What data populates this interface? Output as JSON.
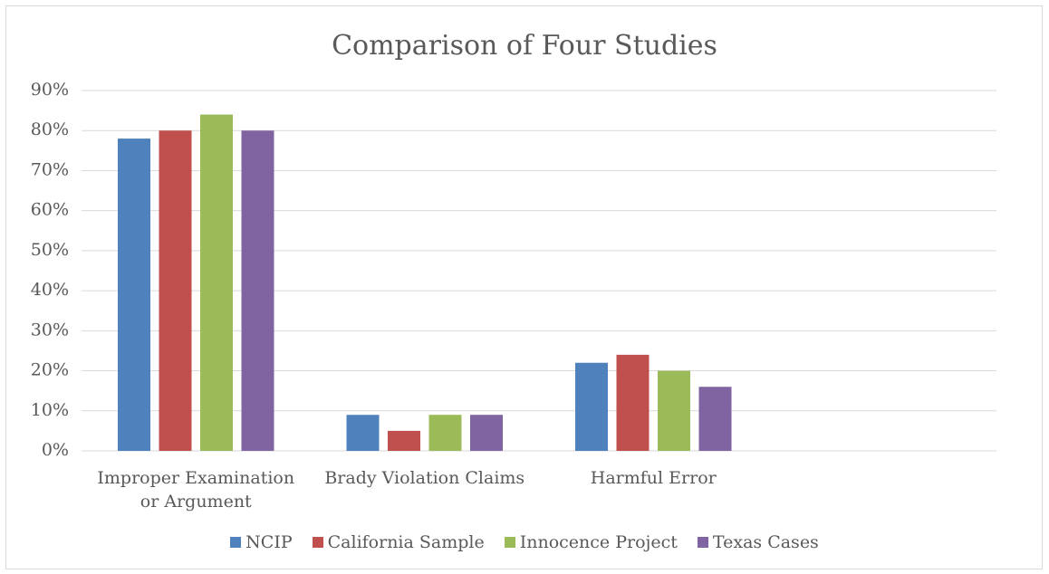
{
  "chart_data": {
    "type": "bar",
    "title": "Comparison of Four Studies",
    "categories": [
      "Improper Examination or Argument",
      "Brady Violation Claims",
      "Harmful Error",
      null
    ],
    "series": [
      {
        "name": "NCIP",
        "color": "#4f81bd",
        "values": [
          78,
          9,
          22,
          null
        ]
      },
      {
        "name": "California Sample",
        "color": "#c0504d",
        "values": [
          80,
          5,
          24,
          null
        ]
      },
      {
        "name": "Innocence Project",
        "color": "#9bbb59",
        "values": [
          84,
          9,
          20,
          null
        ]
      },
      {
        "name": "Texas Cases",
        "color": "#8064a2",
        "values": [
          80,
          9,
          16,
          null
        ]
      }
    ],
    "ylim": [
      0,
      90
    ],
    "yticks": [
      {
        "value": 0,
        "label": "0%"
      },
      {
        "value": 10,
        "label": "10%"
      },
      {
        "value": 20,
        "label": "20%"
      },
      {
        "value": 30,
        "label": "30%"
      },
      {
        "value": 40,
        "label": "40%"
      },
      {
        "value": 50,
        "label": "50%"
      },
      {
        "value": 60,
        "label": "60%"
      },
      {
        "value": 70,
        "label": "70%"
      },
      {
        "value": 80,
        "label": "80%"
      },
      {
        "value": 90,
        "label": "90%"
      }
    ],
    "grid": true,
    "legend": "bottom"
  }
}
